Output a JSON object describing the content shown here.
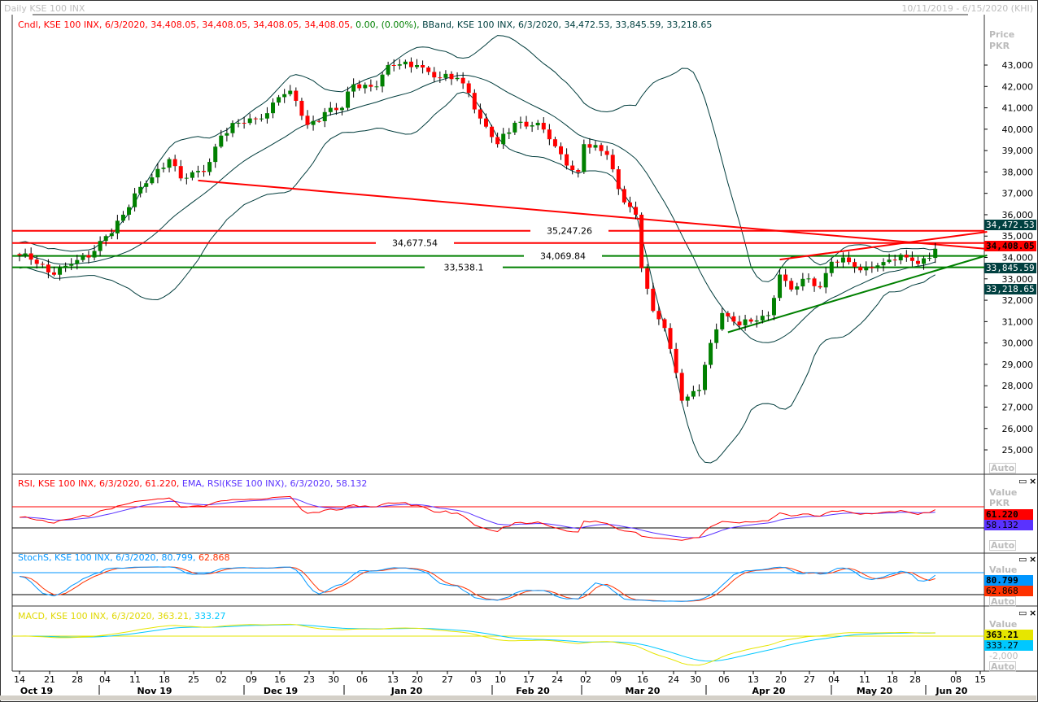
{
  "window": {
    "title": "Daily KSE 100 INX",
    "date_range": "10/11/2019 - 6/15/2020 (KHI)"
  },
  "legend": {
    "cndl": "Cndl, KSE 100 INX, 6/3/2020, 34,408.05, 34,408.05, 34,408.05, 34,408.05,",
    "change": "0.00, (0.00%),",
    "bband": "BBand, KSE 100 INX, 6/3/2020, 34,472.53, 33,845.59, 33,218.65",
    "rsi": "RSI, KSE 100 INX, 6/3/2020, 61.220,",
    "ema": "EMA, RSI(KSE 100 INX), 6/3/2020, 58.132",
    "stoch_a": "StochS, KSE 100 INX, 6/3/2020, 80.799,",
    "stoch_b": "62.868",
    "macd_a": "MACD, KSE 100 INX, 6/3/2020, 363.21,",
    "macd_b": "333.27"
  },
  "price_axis": {
    "title": "Price",
    "unit": "PKR",
    "ticks": [
      "43,000",
      "42,000",
      "41,000",
      "40,000",
      "39,000",
      "38,000",
      "37,000",
      "36,000",
      "35,000",
      "34,000",
      "33,000",
      "32,000",
      "31,000",
      "30,000",
      "29,000",
      "28,000",
      "27,000",
      "26,000",
      "25,000"
    ],
    "tick_values": [
      43000,
      42000,
      41000,
      40000,
      39000,
      38000,
      37000,
      36000,
      35000,
      34000,
      33000,
      32000,
      31000,
      30000,
      29000,
      28000,
      27000,
      26000,
      25000
    ],
    "auto": "Auto",
    "value_labels": [
      {
        "text": "34,472.53",
        "bg": "#004040",
        "fg": "#ffffff"
      },
      {
        "text": "34,408.05",
        "bg": "#ff0000",
        "fg": "#000000"
      },
      {
        "text": "33,845.59",
        "bg": "#004040",
        "fg": "#ffffff"
      },
      {
        "text": "33,218.65",
        "bg": "#004040",
        "fg": "#ffffff"
      }
    ]
  },
  "panels": {
    "rsi": {
      "axis_title": "Value",
      "axis_unit": "PKR",
      "auto": "Auto",
      "values": [
        "61.220",
        "58.132"
      ],
      "colors": [
        "#ff0000",
        "#5a32ff"
      ]
    },
    "stoch": {
      "axis_title": "Value",
      "auto": "Auto",
      "values": [
        "80.799",
        "62.868"
      ],
      "colors": [
        "#0096ff",
        "#ff3200"
      ]
    },
    "macd": {
      "axis_title": "Value",
      "tick": "-2,000",
      "auto": "Auto",
      "values": [
        "363.21",
        "333.27"
      ],
      "colors": [
        "#e6e600",
        "#00c8ff"
      ]
    }
  },
  "x_axis": {
    "day_labels": [
      "14",
      "21",
      "28",
      "04",
      "11",
      "18",
      "25",
      "02",
      "09",
      "16",
      "23",
      "30",
      "06",
      "13",
      "20",
      "27",
      "03",
      "10",
      "17",
      "24",
      "02",
      "09",
      "16",
      "24",
      "30",
      "06",
      "13",
      "20",
      "27",
      "04",
      "11",
      "18",
      "28",
      "08",
      "15"
    ],
    "months": [
      "Oct 19",
      "Nov 19",
      "Dec 19",
      "Jan 20",
      "Feb 20",
      "Mar 20",
      "Apr 20",
      "May 20",
      "Jun 20"
    ]
  },
  "chart_data": {
    "type": "candlestick",
    "title": "Daily KSE 100 INX",
    "ylabel": "Price PKR",
    "ylim": [
      24500,
      43800
    ],
    "close_keypoints": [
      [
        0,
        34100
      ],
      [
        2,
        33900
      ],
      [
        5,
        33300
      ],
      [
        9,
        33700
      ],
      [
        12,
        34000
      ],
      [
        15,
        35000
      ],
      [
        18,
        36000
      ],
      [
        21,
        37300
      ],
      [
        26,
        38600
      ],
      [
        28,
        37700
      ],
      [
        32,
        38000
      ],
      [
        35,
        39700
      ],
      [
        38,
        40300
      ],
      [
        42,
        40500
      ],
      [
        45,
        41500
      ],
      [
        47,
        41800
      ],
      [
        50,
        40200
      ],
      [
        53,
        40800
      ],
      [
        56,
        41000
      ],
      [
        58,
        42100
      ],
      [
        62,
        42000
      ],
      [
        64,
        43000
      ],
      [
        69,
        43000
      ],
      [
        73,
        42400
      ],
      [
        76,
        42400
      ],
      [
        78,
        41700
      ],
      [
        80,
        40500
      ],
      [
        83,
        39300
      ],
      [
        86,
        40300
      ],
      [
        90,
        40300
      ],
      [
        93,
        39200
      ],
      [
        95,
        38300
      ],
      [
        97,
        38000
      ],
      [
        98,
        39300
      ],
      [
        102,
        38800
      ],
      [
        104,
        37200
      ],
      [
        107,
        36000
      ],
      [
        108,
        33500
      ],
      [
        110,
        31500
      ],
      [
        112,
        30700
      ],
      [
        114,
        28600
      ],
      [
        115,
        27300
      ],
      [
        118,
        27800
      ],
      [
        120,
        30000
      ],
      [
        122,
        31400
      ],
      [
        124,
        31000
      ],
      [
        127,
        31000
      ],
      [
        130,
        31300
      ],
      [
        132,
        33200
      ],
      [
        134,
        32500
      ],
      [
        136,
        33000
      ],
      [
        139,
        32600
      ],
      [
        141,
        33800
      ],
      [
        143,
        34000
      ],
      [
        146,
        33400
      ],
      [
        148,
        33500
      ],
      [
        151,
        33900
      ],
      [
        154,
        34000
      ],
      [
        156,
        33700
      ],
      [
        159,
        34408.05
      ]
    ],
    "last": {
      "open": 34408.05,
      "high": 34408.05,
      "low": 34408.05,
      "close": 34408.05,
      "change": 0.0,
      "change_pct": 0.0
    },
    "bollinger": {
      "upper": 34472.53,
      "middle": 33845.59,
      "lower": 33218.65
    },
    "horizontal_lines": [
      {
        "value": 35247.26,
        "label": "35,247.26",
        "color": "#ff0000"
      },
      {
        "value": 34677.54,
        "label": "34,677.54",
        "color": "#ff0000"
      },
      {
        "value": 34069.84,
        "label": "34,069.84",
        "color": "#008000"
      },
      {
        "value": 33538.1,
        "label": "33,538.1",
        "color": "#008000"
      }
    ],
    "trend_lines": [
      {
        "from": [
          31,
          37600
        ],
        "to": [
          168,
          34400
        ],
        "color": "#ff0000"
      },
      {
        "from": [
          132,
          33900
        ],
        "to": [
          168,
          35200
        ],
        "color": "#ff0000"
      },
      {
        "from": [
          123,
          30500
        ],
        "to": [
          168,
          34100
        ],
        "color": "#008000"
      }
    ],
    "rsi": {
      "value": 61.22,
      "ema": 58.132,
      "levels": [
        70,
        30
      ]
    },
    "stoch": {
      "k": 80.799,
      "d": 62.868,
      "levels": [
        80,
        20
      ]
    },
    "macd": {
      "macd": 363.21,
      "signal": 333.27
    }
  }
}
